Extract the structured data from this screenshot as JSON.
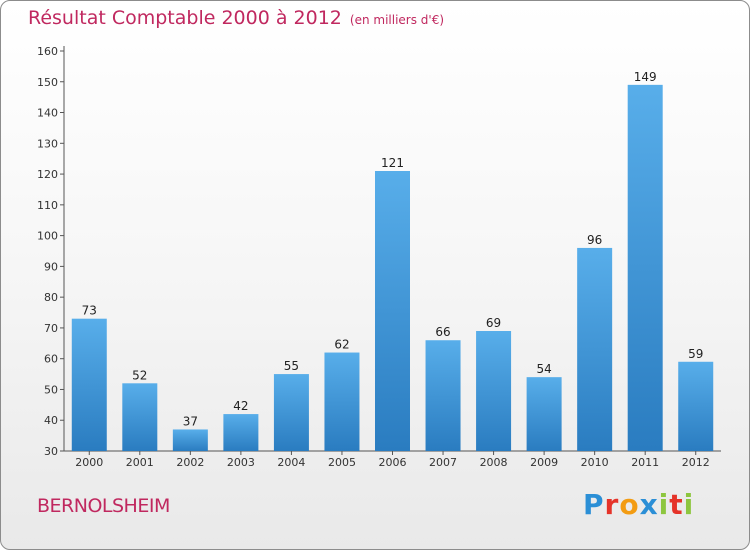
{
  "chart_data": {
    "type": "bar",
    "title": "Résultat Comptable 2000 à 2012",
    "unit_label": "(en milliers d'€)",
    "categories": [
      "2000",
      "2001",
      "2002",
      "2003",
      "2004",
      "2005",
      "2006",
      "2007",
      "2008",
      "2009",
      "2010",
      "2011",
      "2012"
    ],
    "values": [
      73,
      52,
      37,
      42,
      55,
      62,
      121,
      66,
      69,
      54,
      96,
      149,
      59
    ],
    "ylim": [
      30,
      160
    ],
    "ytick_step": 10,
    "xlabel": "",
    "ylabel": "",
    "bar_color": "#3d93d6",
    "grid": false
  },
  "footer": {
    "commune": "BERNOLSHEIM",
    "brand_letters": [
      "P",
      "r",
      "o",
      "x",
      "i",
      "t",
      "i"
    ],
    "brand_colors": [
      "#2b8fd6",
      "#e53329",
      "#f39c12",
      "#2b8fd6",
      "#8dc63f",
      "#e53329",
      "#8dc63f"
    ]
  }
}
